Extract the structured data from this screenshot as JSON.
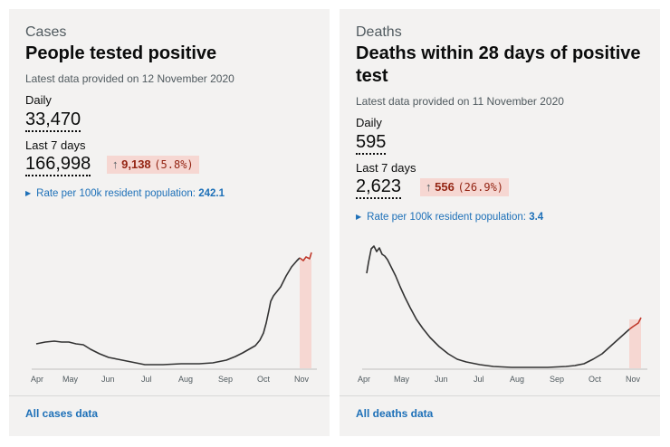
{
  "cases": {
    "topic": "Cases",
    "title": "People tested positive",
    "latest": "Latest data provided on 12 November 2020",
    "daily_label": "Daily",
    "daily_value": "33,470",
    "week_label": "Last 7 days",
    "week_value": "166,998",
    "change_arrow": "↑",
    "change_value": "9,138",
    "change_pct": "(5.8%)",
    "rate_label": "Rate per 100k resident population:",
    "rate_value": "242.1",
    "months": [
      "Apr",
      "May",
      "Jun",
      "Jul",
      "Aug",
      "Sep",
      "Oct",
      "Nov"
    ],
    "link": "All cases data"
  },
  "deaths": {
    "topic": "Deaths",
    "title": "Deaths within 28 days of positive test",
    "latest": "Latest data provided on 11 November 2020",
    "daily_label": "Daily",
    "daily_value": "595",
    "week_label": "Last 7 days",
    "week_value": "2,623",
    "change_arrow": "↑",
    "change_value": "556",
    "change_pct": "(26.9%)",
    "rate_label": "Rate per 100k resident population:",
    "rate_value": "3.4",
    "months": [
      "Apr",
      "May",
      "Jun",
      "Jul",
      "Aug",
      "Sep",
      "Oct",
      "Nov"
    ],
    "link": "All deaths data"
  },
  "colors": {
    "line": "#333333",
    "recent": "#c0392b",
    "highlight": "#f6d7d2",
    "link": "#1d70b8"
  },
  "chart_data": [
    {
      "type": "line",
      "title": "",
      "xlabel": "",
      "ylabel": "",
      "x": [
        "Apr",
        "May",
        "Jun",
        "Jul",
        "Aug",
        "Sep",
        "Oct",
        "Nov"
      ],
      "series": [
        {
          "values": [
            0.2,
            0.17,
            0.05,
            0.0,
            0.01,
            0.05,
            0.55,
            0.99
          ]
        }
      ],
      "highlight": "last 7 days"
    },
    {
      "type": "line",
      "title": "",
      "xlabel": "",
      "ylabel": "",
      "x": [
        "Apr",
        "May",
        "Jun",
        "Jul",
        "Aug",
        "Sep",
        "Oct",
        "Nov"
      ],
      "series": [
        {
          "values": [
            0.85,
            0.45,
            0.09,
            0.03,
            0.01,
            0.0,
            0.07,
            0.4
          ]
        }
      ],
      "highlight": "last 7 days"
    }
  ]
}
